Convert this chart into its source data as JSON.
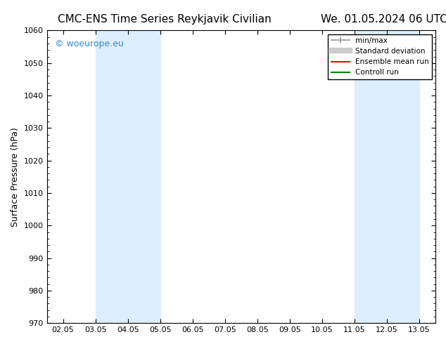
{
  "title_left": "CMC-ENS Time Series Reykjavik Civilian",
  "title_right": "We. 01.05.2024 06 UTC",
  "ylabel": "Surface Pressure (hPa)",
  "ylim": [
    970,
    1060
  ],
  "yticks": [
    970,
    980,
    990,
    1000,
    1010,
    1020,
    1030,
    1040,
    1050,
    1060
  ],
  "xtick_labels": [
    "02.05",
    "03.05",
    "04.05",
    "05.05",
    "06.05",
    "07.05",
    "08.05",
    "09.05",
    "10.05",
    "11.05",
    "12.05",
    "13.05"
  ],
  "shaded_bands": [
    {
      "x_start": "04.05",
      "x_end": "06.05"
    },
    {
      "x_start": "11.05",
      "x_end": "13.05"
    }
  ],
  "shaded_color": "#ddeeff",
  "background_color": "#ffffff",
  "watermark_text": "© woeurope.eu",
  "watermark_color": "#3388cc",
  "legend_entries": [
    {
      "label": "min/max",
      "color": "#aaaaaa",
      "lw": 1.5
    },
    {
      "label": "Standard deviation",
      "color": "#cccccc",
      "lw": 6
    },
    {
      "label": "Ensemble mean run",
      "color": "red",
      "lw": 1.5
    },
    {
      "label": "Controll run",
      "color": "green",
      "lw": 1.5
    }
  ],
  "title_fontsize": 11,
  "tick_fontsize": 8,
  "ylabel_fontsize": 9
}
